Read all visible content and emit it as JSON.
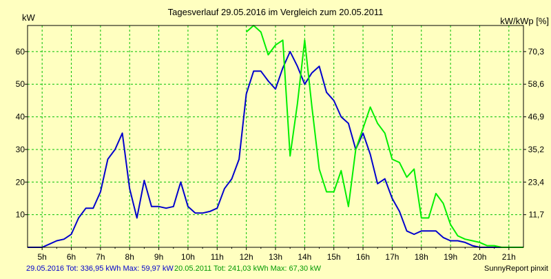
{
  "chart_data": {
    "type": "line",
    "title": "Tagesverlauf 29.05.2016 im Vergleich zum 20.05.2011",
    "ylabel_left": "kW",
    "ylabel_right": "kW/kWp [%]",
    "xlim": [
      4.5,
      21.5
    ],
    "ylim": [
      0,
      68
    ],
    "grid": true,
    "x_ticks": [
      {
        "x": 5,
        "label": "5h"
      },
      {
        "x": 6,
        "label": "6h"
      },
      {
        "x": 7,
        "label": "7h"
      },
      {
        "x": 8,
        "label": "8h"
      },
      {
        "x": 9,
        "label": "9h"
      },
      {
        "x": 10,
        "label": "10h"
      },
      {
        "x": 11,
        "label": "11h"
      },
      {
        "x": 12,
        "label": "12h"
      },
      {
        "x": 13,
        "label": "13h"
      },
      {
        "x": 14,
        "label": "14h"
      },
      {
        "x": 15,
        "label": "15h"
      },
      {
        "x": 16,
        "label": "16h"
      },
      {
        "x": 17,
        "label": "17h"
      },
      {
        "x": 18,
        "label": "18h"
      },
      {
        "x": 19,
        "label": "19h"
      },
      {
        "x": 20,
        "label": "20h"
      },
      {
        "x": 21,
        "label": "21h"
      }
    ],
    "y_ticks_left": [
      {
        "y": 10,
        "label": "10"
      },
      {
        "y": 20,
        "label": "20"
      },
      {
        "y": 30,
        "label": "30"
      },
      {
        "y": 40,
        "label": "40"
      },
      {
        "y": 50,
        "label": "50"
      },
      {
        "y": 60,
        "label": "60"
      }
    ],
    "y_ticks_right": [
      {
        "y": 10,
        "label": "11,7"
      },
      {
        "y": 20,
        "label": "23,4"
      },
      {
        "y": 30,
        "label": "35,2"
      },
      {
        "y": 40,
        "label": "46,9"
      },
      {
        "y": 50,
        "label": "58,6"
      },
      {
        "y": 60,
        "label": "70,3"
      }
    ],
    "series": [
      {
        "color": "#0000CC",
        "points": [
          [
            4.5,
            0
          ],
          [
            5.0,
            0
          ],
          [
            5.25,
            1
          ],
          [
            5.5,
            2
          ],
          [
            5.75,
            2.5
          ],
          [
            6.0,
            4
          ],
          [
            6.25,
            9
          ],
          [
            6.5,
            12
          ],
          [
            6.75,
            12
          ],
          [
            7.0,
            17
          ],
          [
            7.25,
            27
          ],
          [
            7.5,
            30
          ],
          [
            7.75,
            35
          ],
          [
            8.0,
            18
          ],
          [
            8.25,
            9
          ],
          [
            8.5,
            20.5
          ],
          [
            8.75,
            12.5
          ],
          [
            9.0,
            12.5
          ],
          [
            9.25,
            12
          ],
          [
            9.5,
            12.5
          ],
          [
            9.75,
            20
          ],
          [
            10.0,
            12.5
          ],
          [
            10.25,
            10.5
          ],
          [
            10.5,
            10.5
          ],
          [
            10.75,
            11
          ],
          [
            11.0,
            12
          ],
          [
            11.25,
            18
          ],
          [
            11.5,
            21
          ],
          [
            11.75,
            27
          ],
          [
            12.0,
            47
          ],
          [
            12.25,
            54
          ],
          [
            12.5,
            54
          ],
          [
            12.75,
            51
          ],
          [
            13.0,
            48.5
          ],
          [
            13.25,
            55
          ],
          [
            13.5,
            60
          ],
          [
            13.75,
            55.5
          ],
          [
            14.0,
            50
          ],
          [
            14.25,
            53.5
          ],
          [
            14.5,
            55.5
          ],
          [
            14.75,
            47.5
          ],
          [
            15.0,
            45
          ],
          [
            15.25,
            40
          ],
          [
            15.5,
            38
          ],
          [
            15.75,
            30
          ],
          [
            16.0,
            35
          ],
          [
            16.25,
            28.5
          ],
          [
            16.5,
            19.5
          ],
          [
            16.75,
            21
          ],
          [
            17.0,
            15
          ],
          [
            17.25,
            11
          ],
          [
            17.5,
            5
          ],
          [
            17.75,
            4
          ],
          [
            18.0,
            5
          ],
          [
            18.25,
            5
          ],
          [
            18.5,
            5
          ],
          [
            18.75,
            3
          ],
          [
            19.0,
            2
          ],
          [
            19.25,
            2
          ],
          [
            19.5,
            1.5
          ],
          [
            19.75,
            0.5
          ],
          [
            20.0,
            0
          ],
          [
            21.5,
            0
          ]
        ]
      },
      {
        "color": "#00EE00",
        "points": [
          [
            12.0,
            66
          ],
          [
            12.25,
            68
          ],
          [
            12.5,
            66
          ],
          [
            12.75,
            59
          ],
          [
            13.0,
            62
          ],
          [
            13.25,
            63.5
          ],
          [
            13.5,
            28
          ],
          [
            13.75,
            44
          ],
          [
            14.0,
            63.5
          ],
          [
            14.25,
            43
          ],
          [
            14.5,
            24
          ],
          [
            14.75,
            17
          ],
          [
            15.0,
            17
          ],
          [
            15.25,
            23.5
          ],
          [
            15.5,
            12.5
          ],
          [
            15.75,
            30
          ],
          [
            16.0,
            36.5
          ],
          [
            16.25,
            43
          ],
          [
            16.5,
            38
          ],
          [
            16.75,
            35
          ],
          [
            17.0,
            27
          ],
          [
            17.25,
            26
          ],
          [
            17.5,
            21.5
          ],
          [
            17.75,
            24
          ],
          [
            18.0,
            9
          ],
          [
            18.25,
            9
          ],
          [
            18.5,
            16.5
          ],
          [
            18.75,
            13.5
          ],
          [
            19.0,
            7
          ],
          [
            19.25,
            3.5
          ],
          [
            19.5,
            2.5
          ],
          [
            19.75,
            2
          ],
          [
            20.0,
            1.5
          ],
          [
            20.25,
            0.5
          ],
          [
            20.5,
            0.5
          ],
          [
            20.75,
            0
          ],
          [
            21.5,
            0
          ]
        ]
      }
    ]
  },
  "footer": {
    "legend_series1": "29.05.2016 Tot: 336,95 kWh Max: 59,97 kW",
    "legend_series2": "20.05.2011 Tot: 241,03 kWh Max: 67,30 kW",
    "credit": "SunnyReport pinxit"
  }
}
